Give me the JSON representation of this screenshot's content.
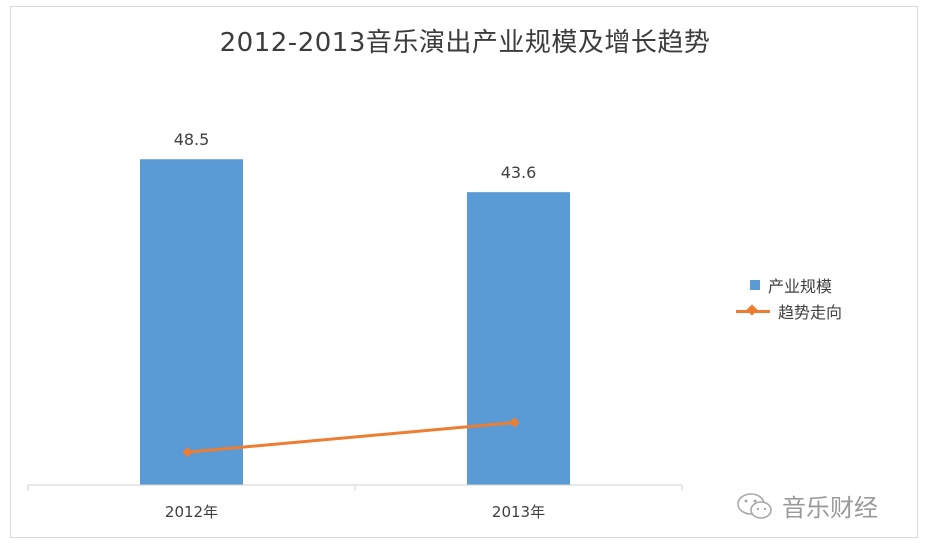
{
  "chart_data": {
    "type": "bar",
    "title": "2012-2013音乐演出产业规模及增长趋势",
    "categories": [
      "2012年",
      "2013年"
    ],
    "series": [
      {
        "name": "产业规模",
        "kind": "bar",
        "values": [
          48.5,
          43.6
        ],
        "color": "#5b9bd5",
        "labels": [
          "48.5",
          "43.6"
        ]
      },
      {
        "name": "趋势走向",
        "kind": "line",
        "values": [
          4.9,
          9.3
        ],
        "color": "#ed7d31"
      }
    ],
    "ylim": [
      0,
      60
    ],
    "xlabel": "",
    "ylabel": "",
    "grid": false,
    "legend": "right"
  },
  "watermark": {
    "text": "音乐财经",
    "icon": "wechat-icon"
  }
}
